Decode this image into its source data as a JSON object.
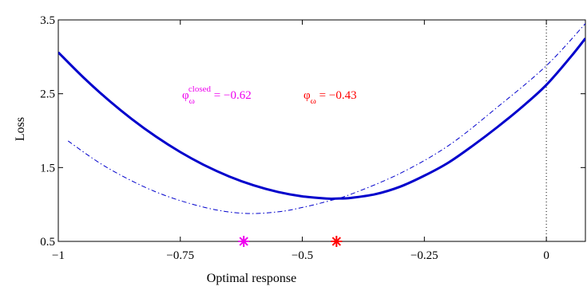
{
  "chart_data": {
    "type": "line",
    "xlabel": "Optimal response",
    "ylabel": "Loss",
    "xlim": [
      -1,
      0.08
    ],
    "ylim": [
      0.5,
      3.5
    ],
    "x_ticks": [
      -1,
      -0.75,
      -0.5,
      -0.25,
      0
    ],
    "x_tick_labels": [
      "−1",
      "−0.75",
      "−0.5",
      "−0.25",
      "0"
    ],
    "y_ticks": [
      0.5,
      1.5,
      2.5,
      3.5
    ],
    "y_tick_labels": [
      "0.5",
      "1.5",
      "2.5",
      "3.5"
    ],
    "grid": false,
    "reference_line": {
      "x": 0,
      "style": "dotted",
      "color": "#000000"
    },
    "series": [
      {
        "style": "solid",
        "color": "#0000cc",
        "width": 3,
        "x": [
          -1,
          -0.95,
          -0.9,
          -0.85,
          -0.8,
          -0.75,
          -0.7,
          -0.65,
          -0.6,
          -0.55,
          -0.5,
          -0.45,
          -0.43,
          -0.4,
          -0.35,
          -0.3,
          -0.25,
          -0.2,
          -0.15,
          -0.1,
          -0.05,
          0,
          0.05,
          0.08
        ],
        "y": [
          3.06,
          2.73,
          2.43,
          2.16,
          1.92,
          1.71,
          1.53,
          1.38,
          1.26,
          1.17,
          1.11,
          1.08,
          1.08,
          1.09,
          1.14,
          1.24,
          1.39,
          1.57,
          1.8,
          2.05,
          2.32,
          2.62,
          3.0,
          3.25
        ]
      },
      {
        "style": "dashdot",
        "color": "#0000cc",
        "width": 1,
        "x": [
          -0.98,
          -0.9,
          -0.8,
          -0.7,
          -0.62,
          -0.55,
          -0.5,
          -0.45,
          -0.4,
          -0.3,
          -0.2,
          -0.1,
          0,
          0.08
        ],
        "y": [
          1.86,
          1.5,
          1.17,
          0.96,
          0.88,
          0.9,
          0.96,
          1.04,
          1.14,
          1.42,
          1.8,
          2.32,
          2.88,
          3.45
        ]
      }
    ],
    "markers": [
      {
        "x": -0.62,
        "y": 0.5,
        "symbol": "*",
        "color": "#ee00ee"
      },
      {
        "x": -0.43,
        "y": 0.5,
        "symbol": "*",
        "color": "#ff0000"
      }
    ],
    "annotations": [
      {
        "symbol": "φ",
        "sub": "ω",
        "sup": "closed",
        "text": " = −0.62",
        "color": "#ee00ee"
      },
      {
        "symbol": "φ",
        "sub": "ω",
        "sup": "",
        "text": " = −0.43",
        "color": "#ff0000"
      }
    ]
  }
}
